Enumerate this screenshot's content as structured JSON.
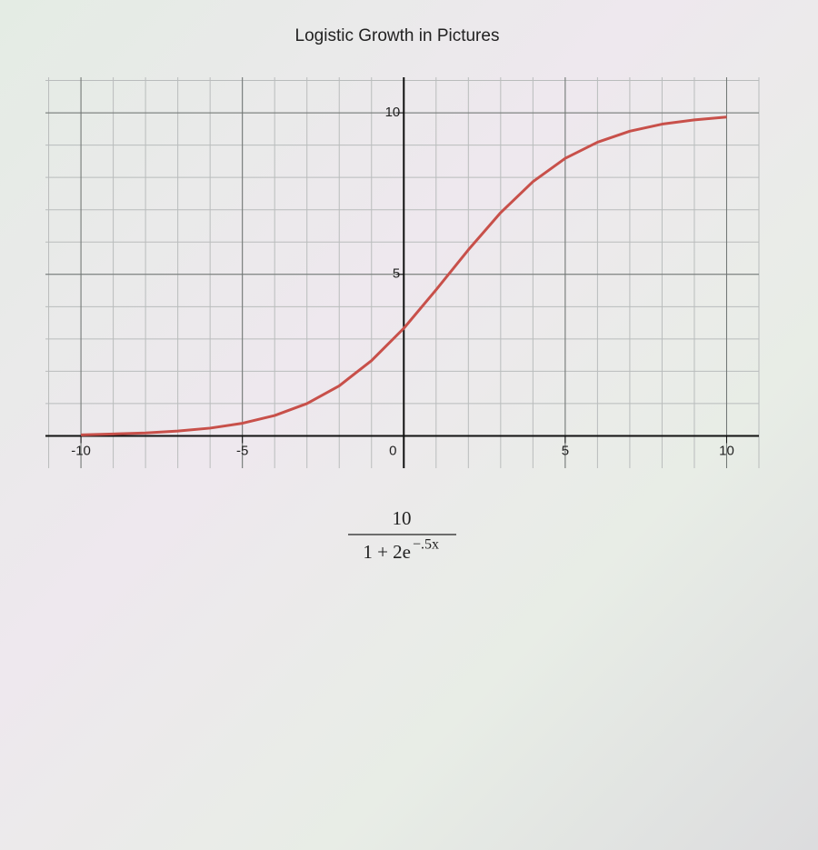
{
  "chart_data": {
    "type": "line",
    "title": "Logistic Growth in Pictures",
    "x": [
      -10,
      -9,
      -8,
      -7,
      -6,
      -5,
      -4,
      -3,
      -2,
      -1,
      0,
      1,
      2,
      3,
      4,
      5,
      6,
      7,
      8,
      9,
      10
    ],
    "series": [
      {
        "color": "#c8504a",
        "values": [
          0.03,
          0.06,
          0.09,
          0.15,
          0.24,
          0.39,
          0.63,
          1.0,
          1.55,
          2.33,
          3.33,
          4.52,
          5.76,
          6.91,
          7.87,
          8.59,
          9.09,
          9.43,
          9.65,
          9.78,
          9.87
        ]
      }
    ],
    "xlim": [
      -11.1,
      11
    ],
    "ylim": [
      -1,
      11.1
    ],
    "xticks": [
      -10,
      -5,
      0,
      5,
      10
    ],
    "yticks": [
      5,
      10
    ],
    "minor_xticks": [
      -11,
      -10,
      -9,
      -8,
      -7,
      -6,
      -5,
      -4,
      -3,
      -2,
      -1,
      1,
      2,
      3,
      4,
      5,
      6,
      7,
      8,
      9,
      10,
      11
    ],
    "minor_yticks": [
      1,
      2,
      3,
      4,
      5,
      6,
      7,
      8,
      9,
      10,
      11
    ],
    "grid": true,
    "formula": {
      "numerator": "10",
      "denominator": "1 + 2e",
      "exponent": "−.5x"
    }
  }
}
